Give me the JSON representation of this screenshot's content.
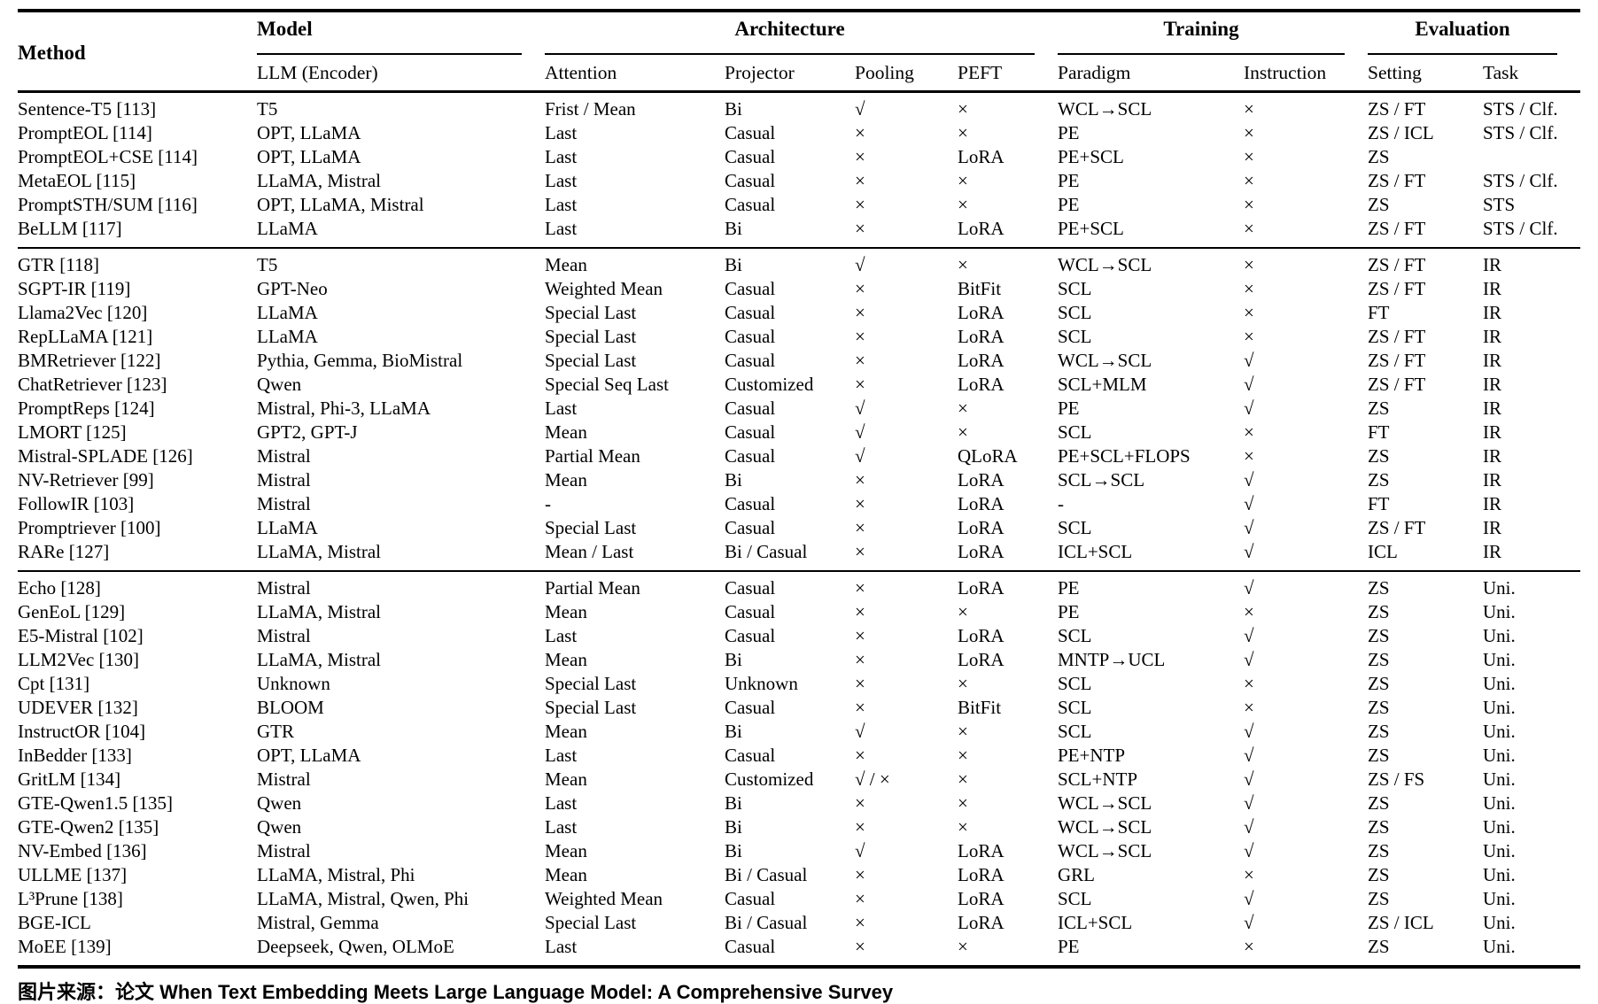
{
  "table": {
    "method_header": "Method",
    "head_groups": [
      {
        "label": "Model"
      },
      {
        "label": "Architecture"
      },
      {
        "label": "Training"
      },
      {
        "label": "Evaluation"
      }
    ],
    "sub_headers": [
      "LLM (Encoder)",
      "Attention",
      "Projector",
      "Pooling",
      "PEFT",
      "Paradigm",
      "Instruction",
      "Setting",
      "Task"
    ],
    "cell_names": [
      "method",
      "llm-encoder",
      "attention",
      "projector",
      "pooling",
      "peft",
      "paradigm",
      "instruction",
      "setting",
      "task"
    ],
    "symbols": {
      "check": "√",
      "cross": "×",
      "arrow": "→"
    },
    "groups": [
      {
        "rows": [
          [
            "Sentence-T5 [113]",
            "T5",
            "Frist / Mean",
            "Bi",
            "√",
            "×",
            "WCL→SCL",
            "×",
            "ZS / FT",
            "STS / Clf."
          ],
          [
            "PromptEOL [114]",
            "OPT, LLaMA",
            "Last",
            "Casual",
            "×",
            "×",
            "PE",
            "×",
            "ZS / ICL",
            "STS / Clf."
          ],
          [
            "PromptEOL+CSE [114]",
            "OPT, LLaMA",
            "Last",
            "Casual",
            "×",
            "LoRA",
            "PE+SCL",
            "×",
            "ZS",
            ""
          ],
          [
            "MetaEOL [115]",
            "LLaMA, Mistral",
            "Last",
            "Casual",
            "×",
            "×",
            "PE",
            "×",
            "ZS / FT",
            "STS / Clf."
          ],
          [
            "PromptSTH/SUM [116]",
            "OPT, LLaMA, Mistral",
            "Last",
            "Casual",
            "×",
            "×",
            "PE",
            "×",
            "ZS",
            "STS"
          ],
          [
            "BeLLM [117]",
            "LLaMA",
            "Last",
            "Bi",
            "×",
            "LoRA",
            "PE+SCL",
            "×",
            "ZS / FT",
            "STS / Clf."
          ]
        ]
      },
      {
        "rows": [
          [
            "GTR [118]",
            "T5",
            "Mean",
            "Bi",
            "√",
            "×",
            "WCL→SCL",
            "×",
            "ZS / FT",
            "IR"
          ],
          [
            "SGPT-IR [119]",
            "GPT-Neo",
            "Weighted Mean",
            "Casual",
            "×",
            "BitFit",
            "SCL",
            "×",
            "ZS / FT",
            "IR"
          ],
          [
            "Llama2Vec [120]",
            "LLaMA",
            "Special Last",
            "Casual",
            "×",
            "LoRA",
            "SCL",
            "×",
            "FT",
            "IR"
          ],
          [
            "RepLLaMA [121]",
            "LLaMA",
            "Special Last",
            "Casual",
            "×",
            "LoRA",
            "SCL",
            "×",
            "ZS / FT",
            "IR"
          ],
          [
            "BMRetriever [122]",
            "Pythia, Gemma, BioMistral",
            "Special Last",
            "Casual",
            "×",
            "LoRA",
            "WCL→SCL",
            "√",
            "ZS / FT",
            "IR"
          ],
          [
            "ChatRetriever [123]",
            "Qwen",
            "Special Seq Last",
            "Customized",
            "×",
            "LoRA",
            "SCL+MLM",
            "√",
            "ZS / FT",
            "IR"
          ],
          [
            "PromptReps [124]",
            "Mistral, Phi-3, LLaMA",
            "Last",
            "Casual",
            "√",
            "×",
            "PE",
            "√",
            "ZS",
            "IR"
          ],
          [
            "LMORT [125]",
            "GPT2, GPT-J",
            "Mean",
            "Casual",
            "√",
            "×",
            "SCL",
            "×",
            "FT",
            "IR"
          ],
          [
            "Mistral-SPLADE [126]",
            "Mistral",
            "Partial Mean",
            "Casual",
            "√",
            "QLoRA",
            "PE+SCL+FLOPS",
            "×",
            "ZS",
            "IR"
          ],
          [
            "NV-Retriever [99]",
            "Mistral",
            "Mean",
            "Bi",
            "×",
            "LoRA",
            "SCL→SCL",
            "√",
            "ZS",
            "IR"
          ],
          [
            "FollowIR [103]",
            "Mistral",
            "-",
            "Casual",
            "×",
            "LoRA",
            "-",
            "√",
            "FT",
            "IR"
          ],
          [
            "Promptriever [100]",
            "LLaMA",
            "Special Last",
            "Casual",
            "×",
            "LoRA",
            "SCL",
            "√",
            "ZS / FT",
            "IR"
          ],
          [
            "RARe [127]",
            "LLaMA, Mistral",
            "Mean / Last",
            "Bi / Casual",
            "×",
            "LoRA",
            "ICL+SCL",
            "√",
            "ICL",
            "IR"
          ]
        ]
      },
      {
        "rows": [
          [
            "Echo [128]",
            "Mistral",
            "Partial Mean",
            "Casual",
            "×",
            "LoRA",
            "PE",
            "√",
            "ZS",
            "Uni."
          ],
          [
            "GenEoL [129]",
            "LLaMA, Mistral",
            "Mean",
            "Casual",
            "×",
            "×",
            "PE",
            "×",
            "ZS",
            "Uni."
          ],
          [
            "E5-Mistral [102]",
            "Mistral",
            "Last",
            "Casual",
            "×",
            "LoRA",
            "SCL",
            "√",
            "ZS",
            "Uni."
          ],
          [
            "LLM2Vec [130]",
            "LLaMA, Mistral",
            "Mean",
            "Bi",
            "×",
            "LoRA",
            "MNTP→UCL",
            "√",
            "ZS",
            "Uni."
          ],
          [
            "Cpt [131]",
            "Unknown",
            "Special Last",
            "Unknown",
            "×",
            "×",
            "SCL",
            "×",
            "ZS",
            "Uni."
          ],
          [
            "UDEVER [132]",
            "BLOOM",
            "Special Last",
            "Casual",
            "×",
            "BitFit",
            "SCL",
            "×",
            "ZS",
            "Uni."
          ],
          [
            "InstructOR [104]",
            "GTR",
            "Mean",
            "Bi",
            "√",
            "×",
            "SCL",
            "√",
            "ZS",
            "Uni."
          ],
          [
            "InBedder [133]",
            "OPT, LLaMA",
            "Last",
            "Casual",
            "×",
            "×",
            "PE+NTP",
            "√",
            "ZS",
            "Uni."
          ],
          [
            "GritLM [134]",
            "Mistral",
            "Mean",
            "Customized",
            "√ / ×",
            "×",
            "SCL+NTP",
            "√",
            "ZS / FS",
            "Uni."
          ],
          [
            "GTE-Qwen1.5 [135]",
            "Qwen",
            "Last",
            "Bi",
            "×",
            "×",
            "WCL→SCL",
            "√",
            "ZS",
            "Uni."
          ],
          [
            "GTE-Qwen2 [135]",
            "Qwen",
            "Last",
            "Bi",
            "×",
            "×",
            "WCL→SCL",
            "√",
            "ZS",
            "Uni."
          ],
          [
            "NV-Embed [136]",
            "Mistral",
            "Mean",
            "Bi",
            "√",
            "LoRA",
            "WCL→SCL",
            "√",
            "ZS",
            "Uni."
          ],
          [
            "ULLME [137]",
            "LLaMA, Mistral, Phi",
            "Mean",
            "Bi / Casual",
            "×",
            "LoRA",
            "GRL",
            "×",
            "ZS",
            "Uni."
          ],
          [
            "L³Prune [138]",
            "LLaMA, Mistral, Qwen, Phi",
            "Weighted Mean",
            "Casual",
            "×",
            "LoRA",
            "SCL",
            "√",
            "ZS",
            "Uni."
          ],
          [
            "BGE-ICL",
            "Mistral, Gemma",
            "Special Last",
            "Bi / Casual",
            "×",
            "LoRA",
            "ICL+SCL",
            "√",
            "ZS / ICL",
            "Uni."
          ],
          [
            "MoEE [139]",
            "Deepseek, Qwen, OLMoE",
            "Last",
            "Casual",
            "×",
            "×",
            "PE",
            "×",
            "ZS",
            "Uni."
          ]
        ]
      }
    ]
  },
  "caption": "图片来源：论文 When Text Embedding Meets Large Language Model: A Comprehensive Survey"
}
